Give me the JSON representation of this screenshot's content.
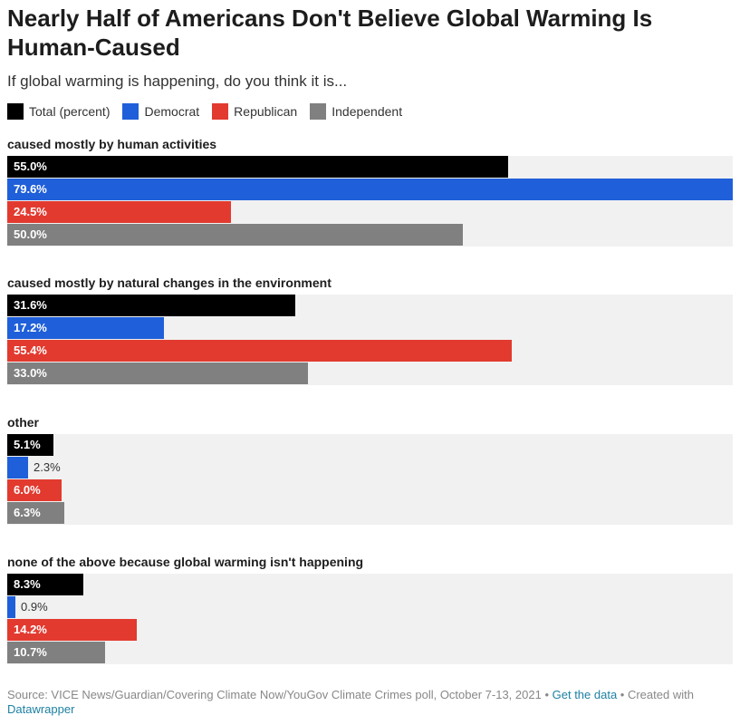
{
  "title": "Nearly Half of Americans Don't Believe Global Warming Is Human-Caused",
  "subtitle": "If global warming is happening, do you think it is...",
  "legend": [
    {
      "label": "Total (percent)",
      "color": "#000000"
    },
    {
      "label": "Democrat",
      "color": "#1f5fd9"
    },
    {
      "label": "Republican",
      "color": "#e23a2f"
    },
    {
      "label": "Independent",
      "color": "#808080"
    }
  ],
  "footer": {
    "source": "Source: VICE News/Guardian/Covering Climate Now/YouGov Climate Crimes poll, October 7-13, 2021",
    "sep1": " • ",
    "get_data": "Get the data",
    "sep2": " • Created with ",
    "datawrapper": "Datawrapper"
  },
  "chart_data": {
    "type": "bar",
    "orientation": "horizontal",
    "title": "Nearly Half of Americans Don't Believe Global Warming Is Human-Caused",
    "subtitle": "If global warming is happening, do you think it is...",
    "xlim": [
      0,
      79.6
    ],
    "categories": [
      "caused mostly by human activities",
      "caused mostly by natural changes in the environment",
      "other",
      "none of the above because global warming isn't happening"
    ],
    "series": [
      {
        "name": "Total (percent)",
        "color": "#000000",
        "values": [
          55.0,
          31.6,
          5.1,
          8.3
        ],
        "labels": [
          "55.0%",
          "31.6%",
          "5.1%",
          "8.3%"
        ]
      },
      {
        "name": "Democrat",
        "color": "#1f5fd9",
        "values": [
          79.6,
          17.2,
          2.3,
          0.9
        ],
        "labels": [
          "79.6%",
          "17.2%",
          "2.3%",
          "0.9%"
        ]
      },
      {
        "name": "Republican",
        "color": "#e23a2f",
        "values": [
          24.5,
          55.4,
          6.0,
          14.2
        ],
        "labels": [
          "24.5%",
          "55.4%",
          "6.0%",
          "14.2%"
        ]
      },
      {
        "name": "Independent",
        "color": "#808080",
        "values": [
          50.0,
          33.0,
          6.3,
          10.7
        ],
        "labels": [
          "50.0%",
          "33.0%",
          "6.3%",
          "10.7%"
        ]
      }
    ]
  }
}
